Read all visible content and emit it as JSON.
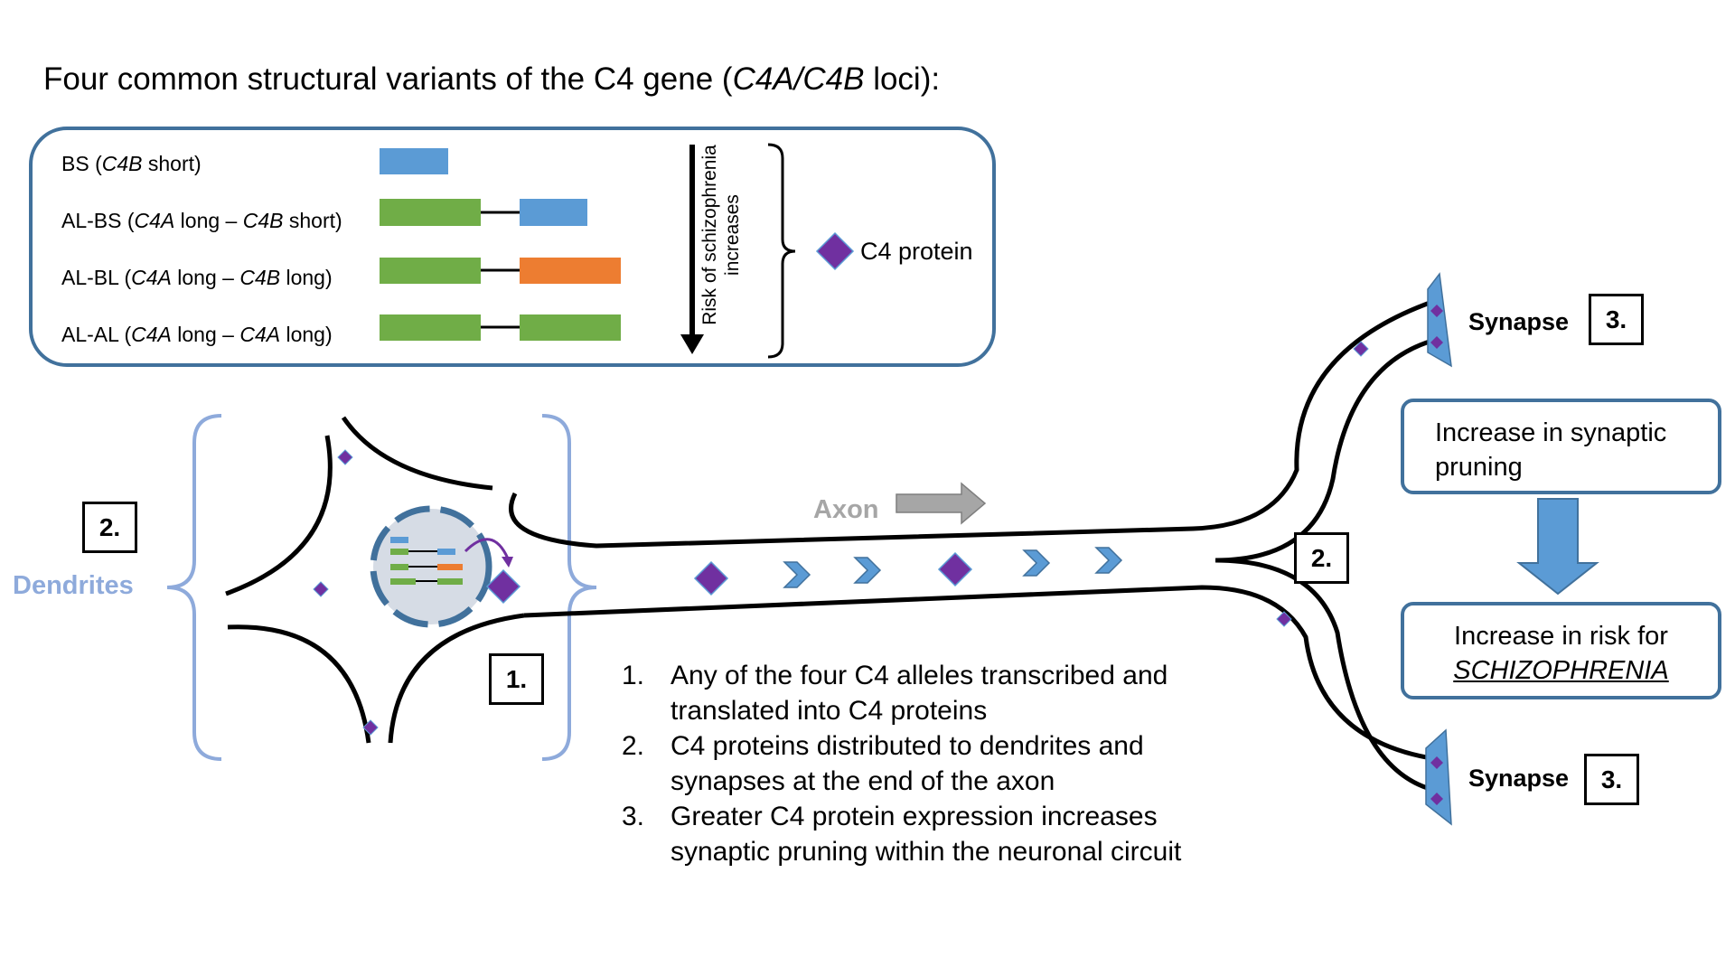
{
  "title": {
    "part1": "Four common structural variants of the C4 gene (",
    "italic": "C4A/C4B",
    "part2": " loci):"
  },
  "variants": [
    {
      "code": "BS",
      "seg": [
        {
          "t": " (",
          "i": false
        },
        {
          "t": "C4B",
          "i": true
        },
        {
          "t": " short)",
          "i": false
        }
      ]
    },
    {
      "code": "AL-BS",
      "seg": [
        {
          "t": " (",
          "i": false
        },
        {
          "t": "C4A",
          "i": true
        },
        {
          "t": " long – ",
          "i": false
        },
        {
          "t": "C4B",
          "i": true
        },
        {
          "t": " short)",
          "i": false
        }
      ]
    },
    {
      "code": "AL-BL",
      "seg": [
        {
          "t": " (",
          "i": false
        },
        {
          "t": "C4A",
          "i": true
        },
        {
          "t": " long – ",
          "i": false
        },
        {
          "t": "C4B",
          "i": true
        },
        {
          "t": " long)",
          "i": false
        }
      ]
    },
    {
      "code": "AL-AL",
      "seg": [
        {
          "t": " (",
          "i": false
        },
        {
          "t": "C4A",
          "i": true
        },
        {
          "t": " long – ",
          "i": false
        },
        {
          "t": "C4A",
          "i": true
        },
        {
          "t": " long)",
          "i": false
        }
      ]
    }
  ],
  "risk_arrow_label": "Risk of schizophrenia increases",
  "legend": {
    "c4_protein": "C4 protein"
  },
  "labels": {
    "dendrites": "Dendrites",
    "axon": "Axon",
    "synapse_top": "Synapse",
    "synapse_bottom": "Synapse"
  },
  "markers": {
    "m1": "1.",
    "m2_left": "2.",
    "m2_right": "2.",
    "m3_top": "3.",
    "m3_bottom": "3."
  },
  "outcomes": {
    "pruning": "Increase in synaptic pruning",
    "risk_prefix": "Increase in risk for",
    "risk_disease": "SCHIZOPHRENIA"
  },
  "steps": [
    {
      "num": "1.",
      "text": "Any of the four C4 alleles transcribed and translated into C4 proteins"
    },
    {
      "num": "2.",
      "text": "C4 proteins distributed to dendrites and synapses at the end of the axon"
    },
    {
      "num": "3.",
      "text": "Greater C4 protein expression increases synaptic pruning within the neuronal circuit"
    }
  ],
  "colors": {
    "c4b_short": "#5b9bd5",
    "c4a_long": "#70ad47",
    "c4b_long": "#ed7d31",
    "protein": "#7030a0",
    "panel_border": "#41719c",
    "dendrite_bracket": "#8eaadb",
    "axon_arrow": "#a6a6a6",
    "synapse_fill": "#5b9bd5",
    "outcome_arrow": "#5b9bd5"
  }
}
